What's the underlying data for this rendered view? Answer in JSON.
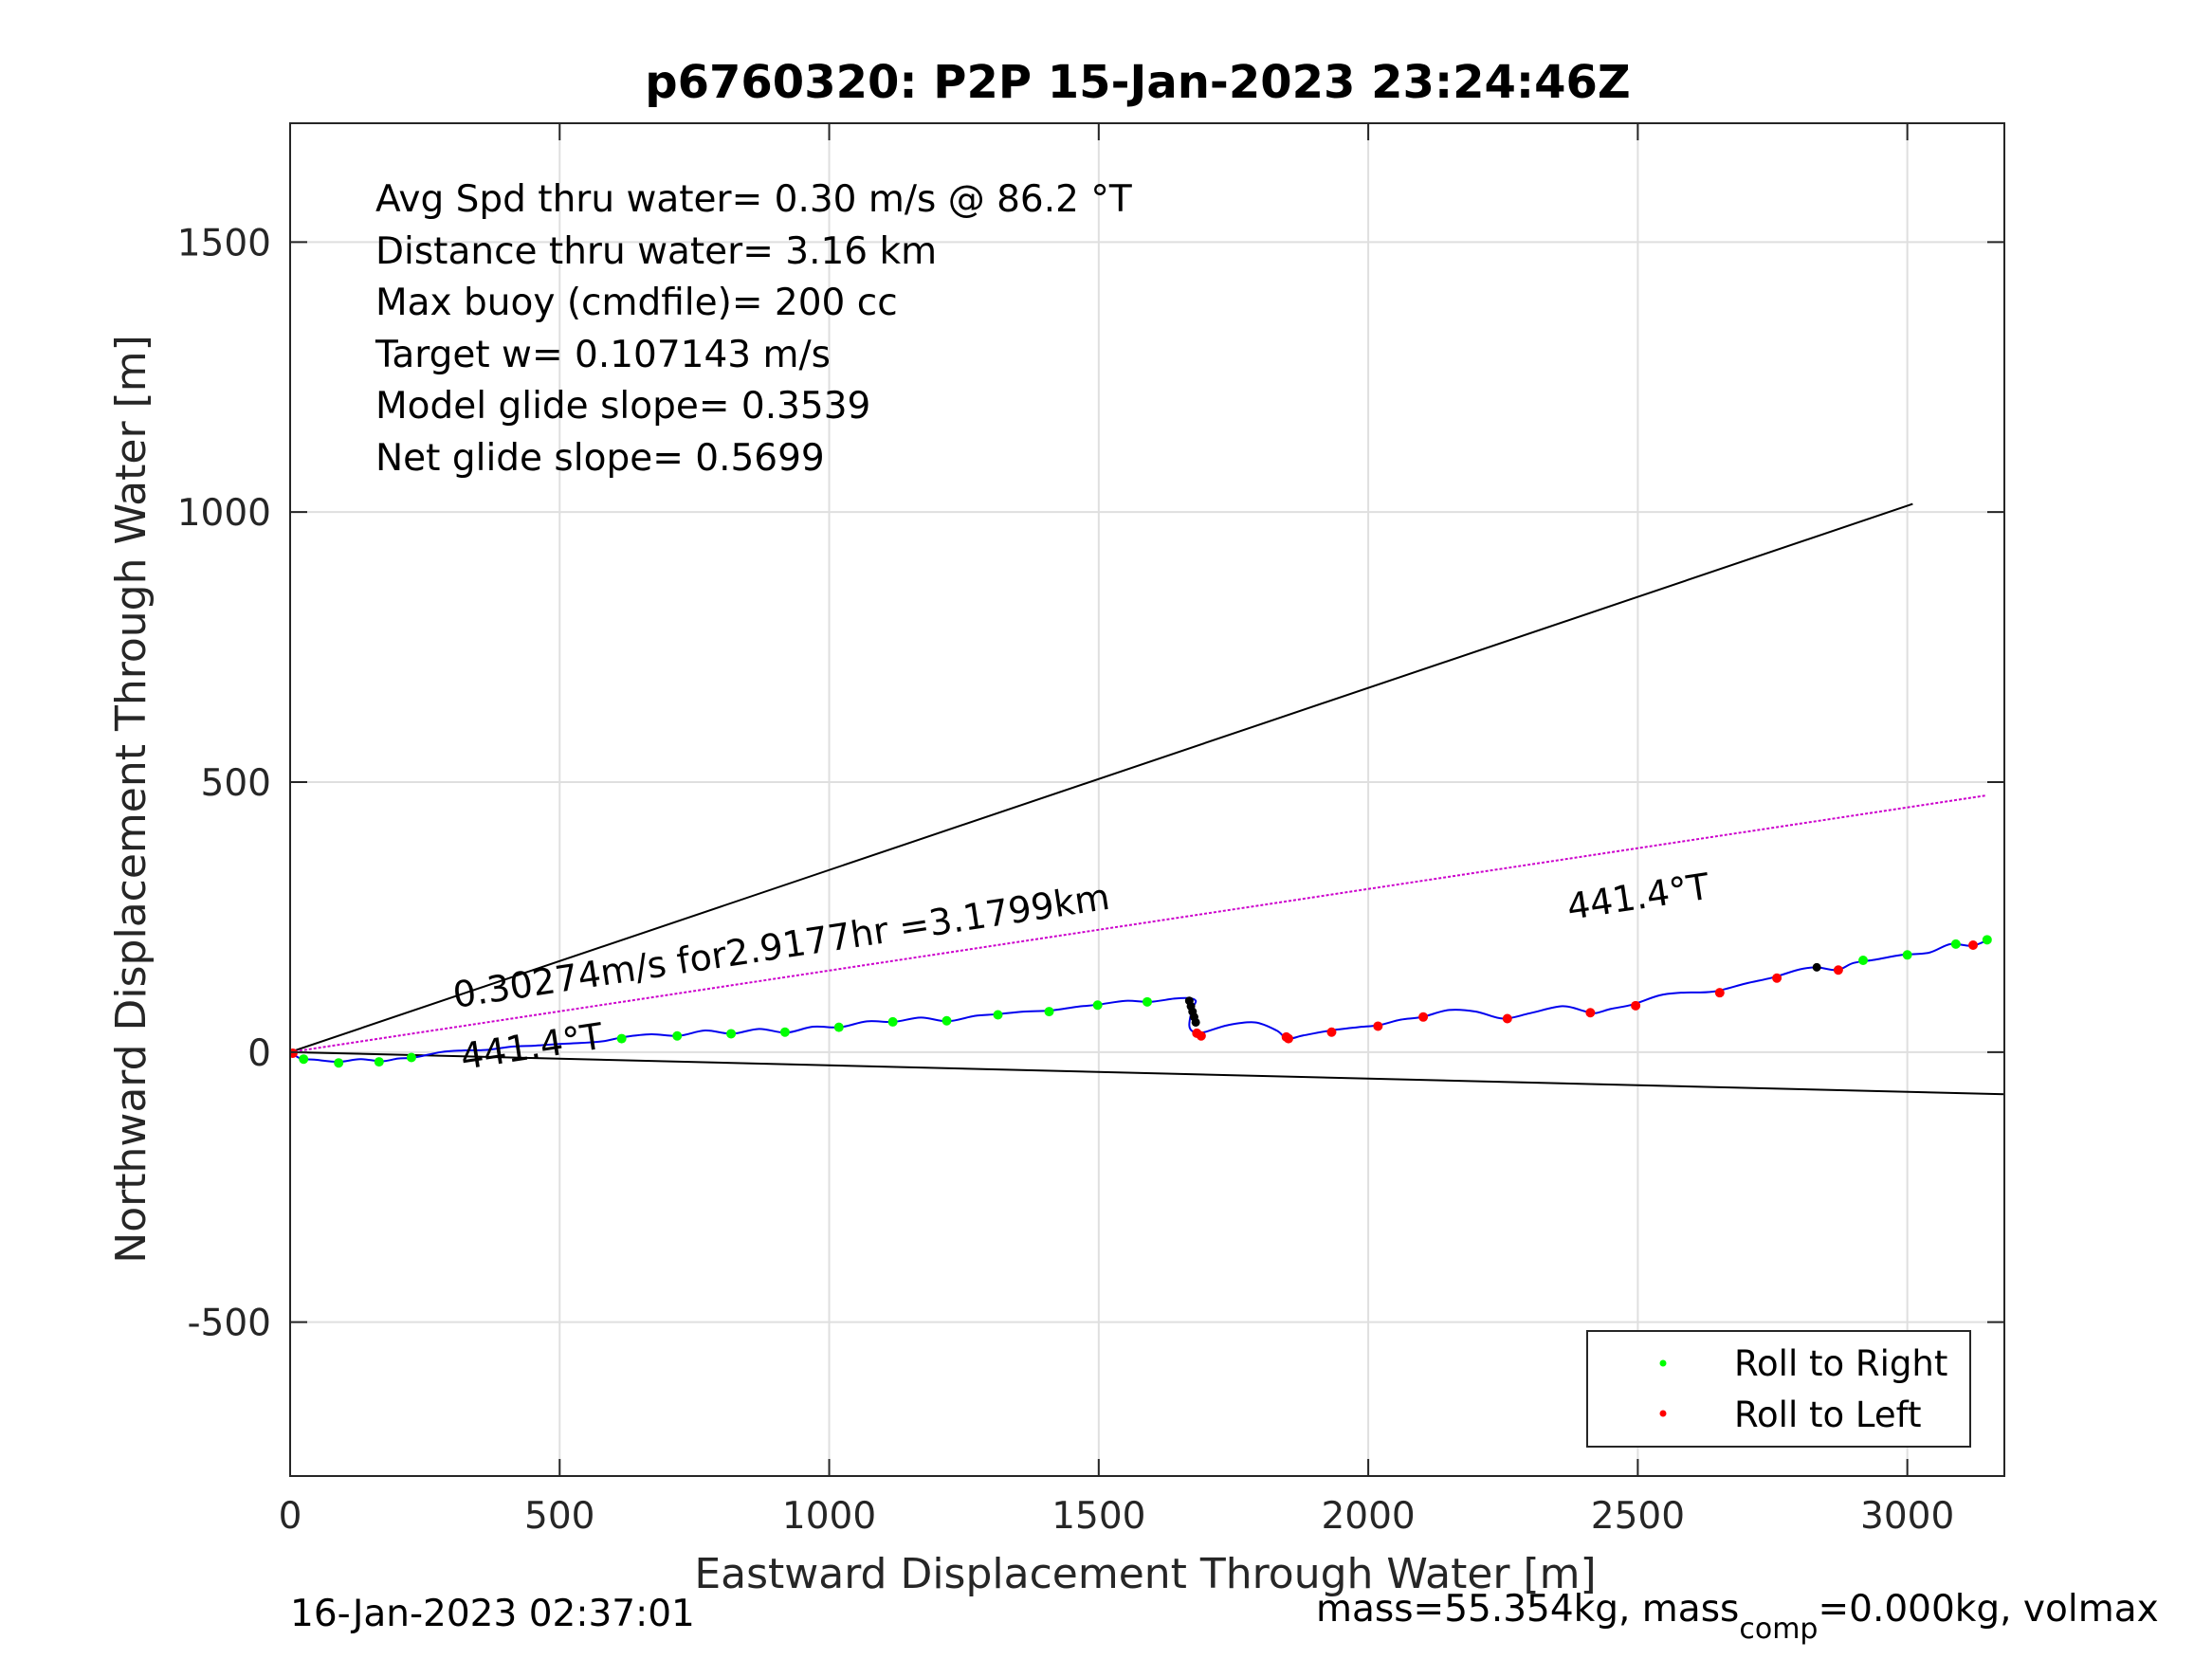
{
  "chart_data": {
    "type": "scatter",
    "title": "p6760320: P2P 15-Jan-2023 23:24:46Z",
    "xlabel": "Eastward Displacement Through Water [m]",
    "ylabel": "Northward Displacement Through Water [m]",
    "xlim": [
      0,
      3180
    ],
    "ylim": [
      -785,
      1720
    ],
    "xticks": [
      0,
      500,
      1000,
      1500,
      2000,
      2500,
      3000
    ],
    "yticks": [
      -500,
      0,
      500,
      1000,
      1500
    ],
    "ytick_labels": [
      "-500",
      "0",
      "500",
      "1000",
      "1500"
    ],
    "grid": true,
    "info_text": [
      "Avg Spd thru water=  0.30 m/s @  86.2 °T",
      "Distance thru water=  3.16 km",
      "Max buoy (cmdfile)= 200 cc",
      "Target w= 0.107143 m/s",
      "Model glide slope= 0.3539",
      "Net glide slope= 0.5699"
    ],
    "annotations": {
      "speed_label": "0.30274m/s for2.9177hr =3.1799km",
      "heading_label_1": "441.4°T",
      "heading_label_2": "441.4°T"
    },
    "lines": [
      {
        "role": "upper-bound",
        "color": "#000000",
        "x": [
          0,
          3010
        ],
        "y": [
          0,
          1015
        ]
      },
      {
        "role": "lower-bound",
        "color": "#000000",
        "x": [
          0,
          3180
        ],
        "y": [
          0,
          -78
        ]
      },
      {
        "role": "mean-track",
        "color": "#cc00cc",
        "x": [
          0,
          3145
        ],
        "y": [
          0,
          475
        ]
      }
    ],
    "track": {
      "color": "#0000ee",
      "points": [
        [
          0,
          0
        ],
        [
          20,
          -12
        ],
        [
          45,
          -14
        ],
        [
          90,
          -18
        ],
        [
          130,
          -13
        ],
        [
          170,
          -17
        ],
        [
          200,
          -12
        ],
        [
          230,
          -10
        ],
        [
          280,
          0
        ],
        [
          320,
          3
        ],
        [
          365,
          4
        ],
        [
          410,
          10
        ],
        [
          455,
          12
        ],
        [
          500,
          15
        ],
        [
          540,
          17
        ],
        [
          580,
          20
        ],
        [
          620,
          28
        ],
        [
          670,
          33
        ],
        [
          720,
          30
        ],
        [
          770,
          40
        ],
        [
          820,
          34
        ],
        [
          870,
          43
        ],
        [
          920,
          36
        ],
        [
          970,
          47
        ],
        [
          1020,
          46
        ],
        [
          1070,
          57
        ],
        [
          1120,
          56
        ],
        [
          1170,
          64
        ],
        [
          1220,
          57
        ],
        [
          1270,
          67
        ],
        [
          1310,
          70
        ],
        [
          1360,
          75
        ],
        [
          1410,
          77
        ],
        [
          1460,
          84
        ],
        [
          1500,
          88
        ],
        [
          1550,
          95
        ],
        [
          1595,
          93
        ],
        [
          1640,
          99
        ],
        [
          1668,
          100
        ],
        [
          1680,
          95
        ],
        [
          1676,
          85
        ],
        [
          1671,
          70
        ],
        [
          1668,
          50
        ],
        [
          1672,
          40
        ],
        [
          1684,
          35
        ],
        [
          1700,
          38
        ],
        [
          1740,
          50
        ],
        [
          1790,
          55
        ],
        [
          1830,
          40
        ],
        [
          1850,
          25
        ],
        [
          1880,
          31
        ],
        [
          1930,
          40
        ],
        [
          1980,
          46
        ],
        [
          2020,
          50
        ],
        [
          2060,
          60
        ],
        [
          2100,
          65
        ],
        [
          2150,
          78
        ],
        [
          2200,
          75
        ],
        [
          2250,
          62
        ],
        [
          2300,
          72
        ],
        [
          2360,
          85
        ],
        [
          2400,
          76
        ],
        [
          2420,
          72
        ],
        [
          2450,
          80
        ],
        [
          2490,
          88
        ],
        [
          2540,
          105
        ],
        [
          2580,
          110
        ],
        [
          2640,
          112
        ],
        [
          2700,
          127
        ],
        [
          2750,
          138
        ],
        [
          2800,
          153
        ],
        [
          2832,
          157
        ],
        [
          2870,
          152
        ],
        [
          2900,
          165
        ],
        [
          2940,
          171
        ],
        [
          2990,
          180
        ],
        [
          3040,
          184
        ],
        [
          3080,
          200
        ],
        [
          3120,
          197
        ],
        [
          3150,
          208
        ]
      ]
    },
    "series": [
      {
        "name": "Roll to Right",
        "color": "#00ff00",
        "x": [
          25,
          90,
          165,
          225,
          615,
          718,
          818,
          918,
          1018,
          1118,
          1218,
          1313,
          1408,
          1498,
          1590,
          2918,
          3000,
          3090,
          3148
        ],
        "y": [
          -13,
          -20,
          -18,
          -10,
          25,
          30,
          34,
          37,
          46,
          56,
          58,
          69,
          75,
          87,
          93,
          170,
          180,
          200,
          208
        ]
      },
      {
        "name": "Roll to Left",
        "color": "#ff0000",
        "x": [
          5,
          1682,
          1690,
          1848,
          1852,
          1932,
          2018,
          2102,
          2258,
          2412,
          2496,
          2652,
          2758,
          2872,
          3122
        ],
        "y": [
          -2,
          35,
          30,
          28,
          25,
          37,
          48,
          65,
          62,
          73,
          86,
          110,
          137,
          152,
          198
        ]
      },
      {
        "name": "",
        "color": "#000000",
        "x": [
          1668,
          1671,
          1674,
          1677,
          1680,
          2832
        ],
        "y": [
          95,
          85,
          75,
          65,
          55,
          157
        ]
      }
    ],
    "legend": {
      "placement": "bottom-right",
      "entries": [
        "Roll to Right",
        "Roll to Left"
      ]
    },
    "footer": {
      "timestamp": "16-Jan-2023 02:37:01",
      "mass_prefix": "mass=55.354kg, mass",
      "mass_sub": "comp",
      "mass_suffix": "=0.000kg, volmax"
    }
  }
}
